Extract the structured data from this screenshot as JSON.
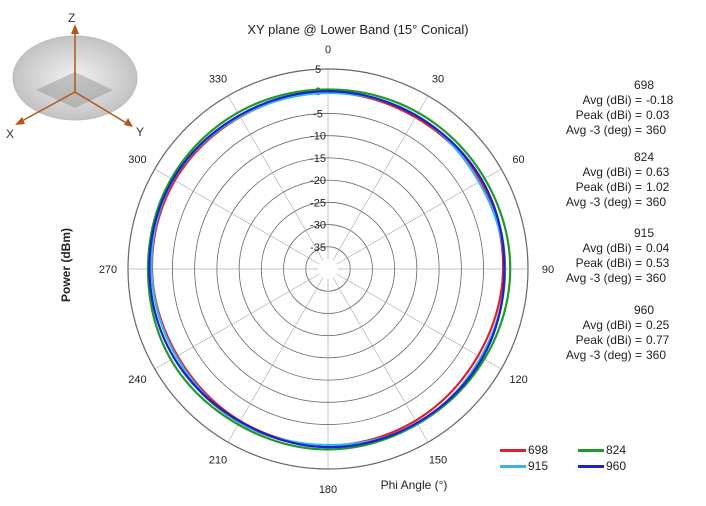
{
  "chart_data": {
    "type": "polar-line",
    "title": "XY plane @ Lower Band (15° Conical)",
    "xlabel": "Phi  Angle (°)",
    "ylabel": "Power (dBm)",
    "angle_ticks": [
      "0",
      "30",
      "60",
      "90",
      "120",
      "150",
      "180",
      "210",
      "240",
      "270",
      "300",
      "330"
    ],
    "radial_ticks": [
      "5",
      "0",
      "-5",
      "-10",
      "-15",
      "-20",
      "-25",
      "-30",
      "-35"
    ],
    "rlim": [
      -40,
      5
    ],
    "angle_direction": "clockwise",
    "angle_zero": "top",
    "legend_position": "bottom-right",
    "series": [
      {
        "name": "698",
        "color": "#e0202a",
        "phi": [
          0,
          30,
          60,
          90,
          120,
          150,
          180,
          210,
          240,
          270,
          300,
          330
        ],
        "gain_dbi": [
          -0.3,
          -0.6,
          -0.4,
          -0.6,
          -1.0,
          -0.6,
          -0.3,
          -0.5,
          -0.9,
          -0.4,
          -0.2,
          -0.5
        ]
      },
      {
        "name": "824",
        "color": "#1f9a2a",
        "phi": [
          0,
          30,
          60,
          90,
          120,
          150,
          180,
          210,
          240,
          270,
          300,
          330
        ],
        "gain_dbi": [
          0.4,
          0.6,
          0.7,
          1.0,
          0.6,
          0.3,
          0.6,
          0.4,
          0.8,
          0.5,
          0.7,
          0.6
        ]
      },
      {
        "name": "915",
        "color": "#33b5f0",
        "phi": [
          0,
          30,
          60,
          90,
          120,
          150,
          180,
          210,
          240,
          270,
          300,
          330
        ],
        "gain_dbi": [
          -0.4,
          -0.1,
          -0.8,
          -0.2,
          -0.3,
          0.1,
          -0.4,
          -0.2,
          -0.6,
          -0.3,
          0.2,
          -0.4
        ]
      },
      {
        "name": "960",
        "color": "#1a22c8",
        "phi": [
          0,
          30,
          60,
          90,
          120,
          150,
          180,
          210,
          240,
          270,
          300,
          330
        ],
        "gain_dbi": [
          0.0,
          -0.2,
          0.0,
          -0.3,
          0.1,
          0.0,
          0.1,
          -0.4,
          0.0,
          0.2,
          0.3,
          -0.1
        ]
      }
    ]
  },
  "axes_icon": {
    "z": "Z",
    "x": "X",
    "y": "Y"
  },
  "stats": [
    {
      "freq": "698",
      "avg_label": "Avg (dBi) =",
      "avg": "-0.18",
      "peak_label": "Peak (dBi) =",
      "peak": "0.03",
      "avg3_label": "Avg -3 (deg) =",
      "avg3": "360"
    },
    {
      "freq": "824",
      "avg_label": "Avg (dBi) =",
      "avg": "0.63",
      "peak_label": "Peak (dBi) =",
      "peak": "1.02",
      "avg3_label": "Avg -3 (deg) =",
      "avg3": "360"
    },
    {
      "freq": "915",
      "avg_label": "Avg (dBi) =",
      "avg": "0.04",
      "peak_label": "Peak (dBi) =",
      "peak": "0.53",
      "avg3_label": "Avg -3 (deg) =",
      "avg3": "360"
    },
    {
      "freq": "960",
      "avg_label": "Avg (dBi) =",
      "avg": "0.25",
      "peak_label": "Peak (dBi) =",
      "peak": "0.77",
      "avg3_label": "Avg -3 (deg) =",
      "avg3": "360"
    }
  ],
  "legend": [
    {
      "label": "698",
      "color": "#e0202a"
    },
    {
      "label": "824",
      "color": "#1f9a2a"
    },
    {
      "label": "915",
      "color": "#33b5f0"
    },
    {
      "label": "960",
      "color": "#1a22c8"
    }
  ]
}
